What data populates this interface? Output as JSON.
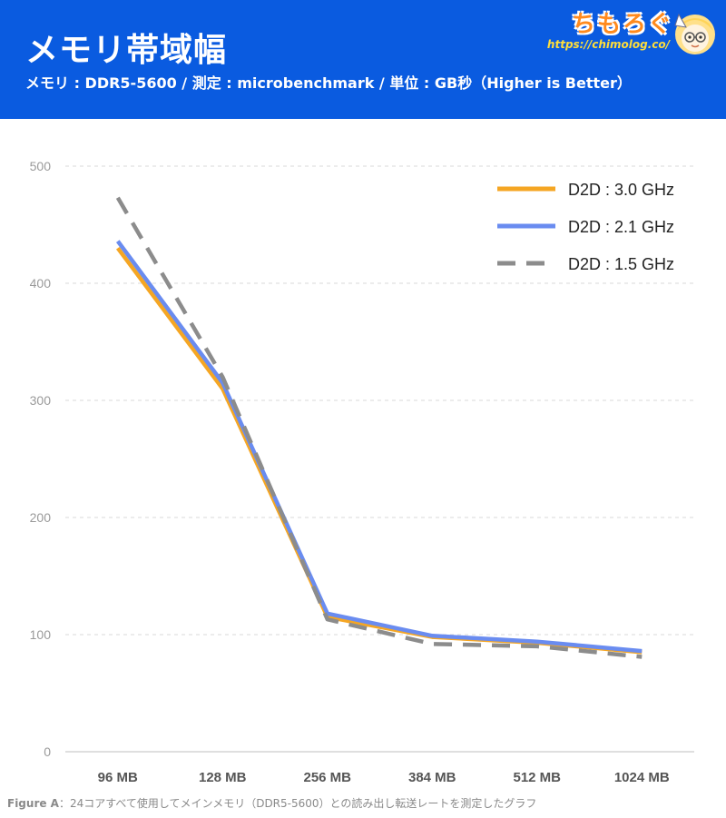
{
  "header": {
    "title": "メモリ帯域幅",
    "subtitle": "メモリ : DDR5-5600 / 測定 : microbenchmark / 単位 : GB秒（Higher is Better）",
    "brand_name": "ちもろぐ",
    "brand_url": "https://chimolog.co/"
  },
  "footer": {
    "label": "Figure A",
    "text": "：24コアすべて使用してメインメモリ（DDR5-5600）との読み出し転送レートを測定したグラフ"
  },
  "colors": {
    "header_bg": "#0a5be0",
    "series_3_0": "#f5a623",
    "series_2_1": "#6a8cf0",
    "series_1_5": "#8c8c8c"
  },
  "chart_data": {
    "type": "line",
    "title": "メモリ帯域幅",
    "xlabel": "",
    "ylabel": "",
    "categories": [
      "96 MB",
      "128 MB",
      "256 MB",
      "384 MB",
      "512 MB",
      "1024 MB"
    ],
    "ylim": [
      0,
      500
    ],
    "yticks": [
      0,
      100,
      200,
      300,
      400,
      500
    ],
    "grid": true,
    "legend_position": "top-right",
    "series": [
      {
        "name": "D2D : 3.0 GHz",
        "values": [
          430,
          310,
          115,
          98,
          93,
          85
        ],
        "color": "#f5a623",
        "dash": "solid"
      },
      {
        "name": "D2D : 2.1 GHz",
        "values": [
          436,
          315,
          118,
          99,
          94,
          86
        ],
        "color": "#6a8cf0",
        "dash": "solid"
      },
      {
        "name": "D2D : 1.5 GHz",
        "values": [
          473,
          320,
          113,
          92,
          90,
          81
        ],
        "color": "#8c8c8c",
        "dash": "dashed"
      }
    ]
  }
}
